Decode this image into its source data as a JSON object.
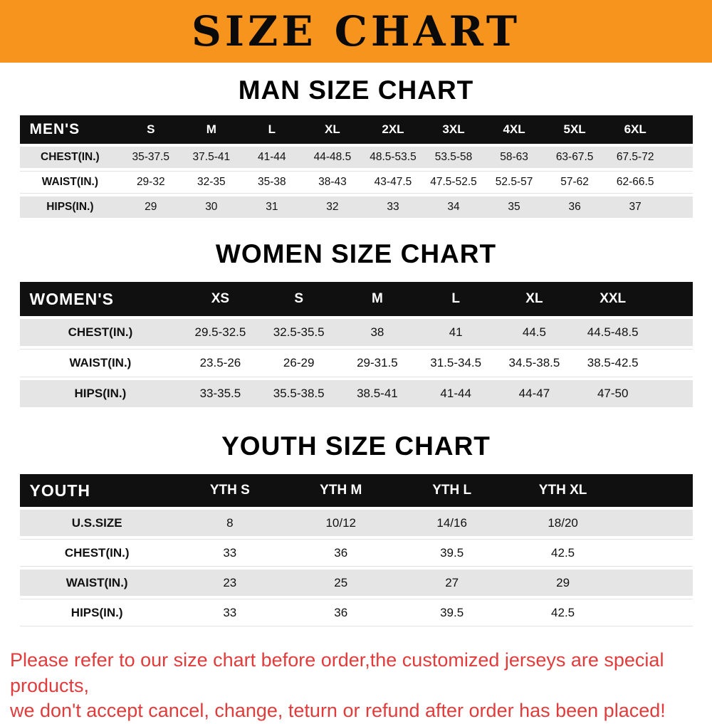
{
  "banner": {
    "title": "SIZE CHART"
  },
  "colors": {
    "banner_bg": "#f7941e",
    "table_header_bg": "#101010",
    "row_alt_bg": "#e5e5e5",
    "disclaimer_text": "#e03c3c"
  },
  "chart_data": [
    {
      "type": "table",
      "title": "MAN SIZE CHART",
      "columns": [
        "MEN'S",
        "S",
        "M",
        "L",
        "XL",
        "2XL",
        "3XL",
        "4XL",
        "5XL",
        "6XL"
      ],
      "rows": [
        [
          "CHEST(IN.)",
          "35-37.5",
          "37.5-41",
          "41-44",
          "44-48.5",
          "48.5-53.5",
          "53.5-58",
          "58-63",
          "63-67.5",
          "67.5-72"
        ],
        [
          "WAIST(IN.)",
          "29-32",
          "32-35",
          "35-38",
          "38-43",
          "43-47.5",
          "47.5-52.5",
          "52.5-57",
          "57-62",
          "62-66.5"
        ],
        [
          "HIPS(IN.)",
          "29",
          "30",
          "31",
          "32",
          "33",
          "34",
          "35",
          "36",
          "37"
        ]
      ]
    },
    {
      "type": "table",
      "title": "WOMEN SIZE CHART",
      "columns": [
        "WOMEN'S",
        "XS",
        "S",
        "M",
        "L",
        "XL",
        "XXL"
      ],
      "rows": [
        [
          "CHEST(IN.)",
          "29.5-32.5",
          "32.5-35.5",
          "38",
          "41",
          "44.5",
          "44.5-48.5"
        ],
        [
          "WAIST(IN.)",
          "23.5-26",
          "26-29",
          "29-31.5",
          "31.5-34.5",
          "34.5-38.5",
          "38.5-42.5"
        ],
        [
          "HIPS(IN.)",
          "33-35.5",
          "35.5-38.5",
          "38.5-41",
          "41-44",
          "44-47",
          "47-50"
        ]
      ]
    },
    {
      "type": "table",
      "title": "YOUTH SIZE CHART",
      "columns": [
        "YOUTH",
        "YTH S",
        "YTH M",
        "YTH L",
        "YTH XL"
      ],
      "rows": [
        [
          "U.S.SIZE",
          "8",
          "10/12",
          "14/16",
          "18/20"
        ],
        [
          "CHEST(IN.)",
          "33",
          "36",
          "39.5",
          "42.5"
        ],
        [
          "WAIST(IN.)",
          "23",
          "25",
          "27",
          "29"
        ],
        [
          "HIPS(IN.)",
          "33",
          "36",
          "39.5",
          "42.5"
        ]
      ]
    }
  ],
  "disclaimer": {
    "lines": [
      "Please refer to our size chart before order,the customized jerseys are special products,",
      "we don't accept cancel, change, teturn or refund after order has been placed!"
    ]
  }
}
